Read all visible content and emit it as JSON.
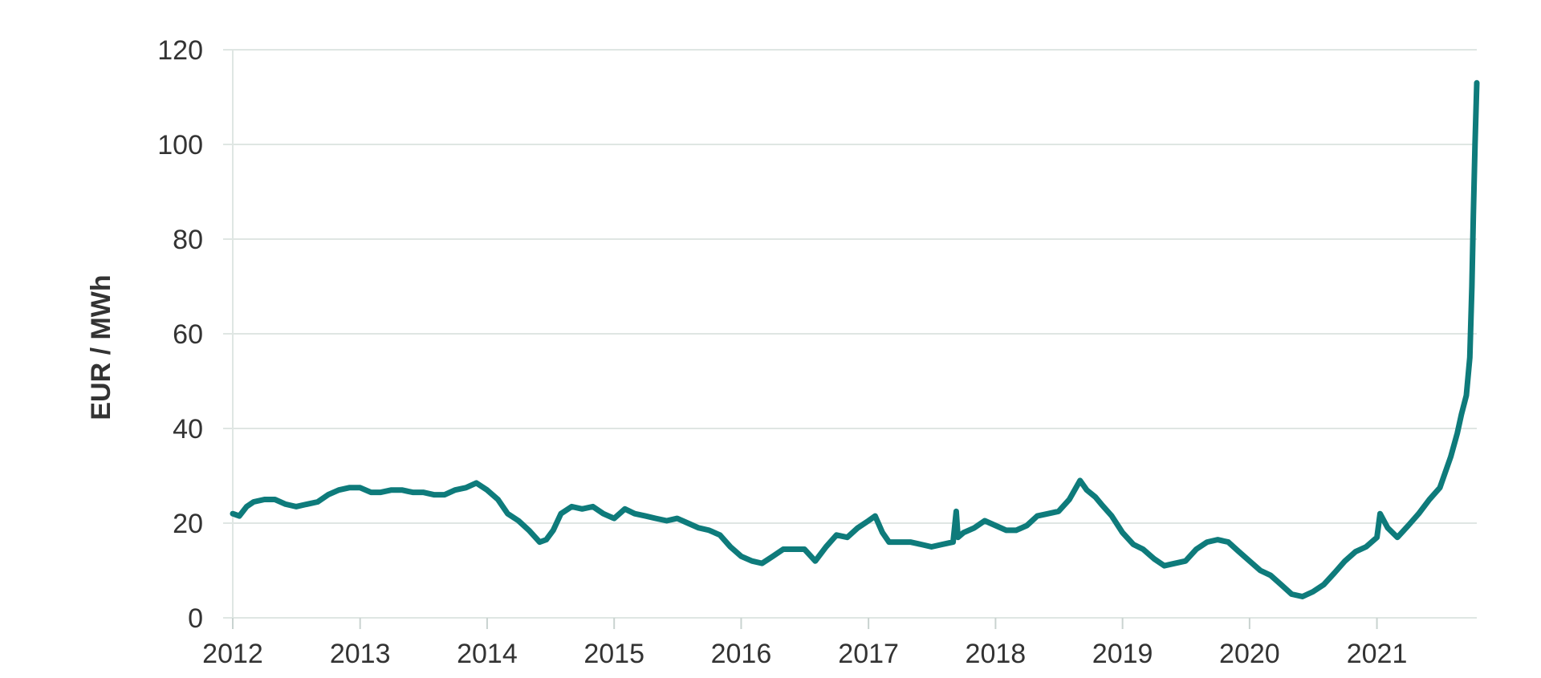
{
  "chart_data": {
    "type": "line",
    "title": "",
    "xlabel": "",
    "ylabel": "EUR / MWh",
    "ylim": [
      0,
      120
    ],
    "xlim": [
      "2012-01-01",
      "2021-10-15"
    ],
    "y_ticks": [
      "0",
      "20",
      "40",
      "60",
      "80",
      "100",
      "120"
    ],
    "x_ticks": [
      "2012",
      "2013",
      "2014",
      "2015",
      "2016",
      "2017",
      "2018",
      "2019",
      "2020",
      "2021"
    ],
    "grid": "horizontal",
    "legend": "none",
    "colors": {
      "line": "#0e7b7b",
      "grid": "#dfe6e3",
      "text": "#333333"
    },
    "series": [
      {
        "x": [
          "2012-01-01",
          "2012-01-20",
          "2012-02-10",
          "2012-03-01",
          "2012-04-01",
          "2012-05-01",
          "2012-06-01",
          "2012-07-01",
          "2012-08-01",
          "2012-09-01",
          "2012-10-01",
          "2012-11-01",
          "2012-12-01",
          "2013-01-01",
          "2013-02-01",
          "2013-03-01",
          "2013-04-01",
          "2013-05-01",
          "2013-06-01",
          "2013-07-01",
          "2013-08-01",
          "2013-09-01",
          "2013-10-01",
          "2013-11-01",
          "2013-12-01",
          "2014-01-01",
          "2014-02-01",
          "2014-03-01",
          "2014-04-01",
          "2014-05-01",
          "2014-06-01",
          "2014-06-20",
          "2014-07-10",
          "2014-08-01",
          "2014-09-01",
          "2014-10-01",
          "2014-11-01",
          "2014-12-01",
          "2015-01-01",
          "2015-02-01",
          "2015-03-01",
          "2015-04-01",
          "2015-05-01",
          "2015-06-01",
          "2015-07-01",
          "2015-08-01",
          "2015-09-01",
          "2015-10-01",
          "2015-11-01",
          "2015-12-01",
          "2016-01-01",
          "2016-02-01",
          "2016-03-01",
          "2016-04-01",
          "2016-05-01",
          "2016-06-01",
          "2016-07-01",
          "2016-08-01",
          "2016-09-01",
          "2016-10-01",
          "2016-11-01",
          "2016-12-01",
          "2017-01-01",
          "2017-01-20",
          "2017-02-10",
          "2017-03-01",
          "2017-04-01",
          "2017-05-01",
          "2017-06-01",
          "2017-07-01",
          "2017-08-01",
          "2017-09-01",
          "2017-09-10",
          "2017-09-15",
          "2017-10-01",
          "2017-11-01",
          "2017-12-01",
          "2018-01-01",
          "2018-02-01",
          "2018-03-01",
          "2018-04-01",
          "2018-05-01",
          "2018-06-01",
          "2018-07-01",
          "2018-08-01",
          "2018-09-01",
          "2018-09-20",
          "2018-10-15",
          "2018-11-01",
          "2018-12-01",
          "2019-01-01",
          "2019-02-01",
          "2019-03-01",
          "2019-04-01",
          "2019-05-01",
          "2019-06-01",
          "2019-07-01",
          "2019-08-01",
          "2019-09-01",
          "2019-10-01",
          "2019-11-01",
          "2019-12-01",
          "2020-01-01",
          "2020-02-01",
          "2020-03-01",
          "2020-04-01",
          "2020-05-01",
          "2020-06-01",
          "2020-07-01",
          "2020-08-01",
          "2020-09-01",
          "2020-10-01",
          "2020-11-01",
          "2020-12-01",
          "2021-01-01",
          "2021-01-10",
          "2021-02-01",
          "2021-03-01",
          "2021-04-01",
          "2021-05-01",
          "2021-06-01",
          "2021-07-01",
          "2021-08-01",
          "2021-08-20",
          "2021-09-01",
          "2021-09-15",
          "2021-09-25",
          "2021-10-01",
          "2021-10-05",
          "2021-10-10",
          "2021-10-15"
        ],
        "y": [
          22,
          21.5,
          23.5,
          24.5,
          25,
          25,
          24,
          23.5,
          24,
          24.5,
          26,
          27,
          27.5,
          27.5,
          26.5,
          26.5,
          27,
          27,
          26.5,
          26.5,
          26,
          26,
          27,
          27.5,
          28.5,
          27,
          25,
          22,
          20.5,
          18.5,
          16,
          16.5,
          18.5,
          22,
          23.5,
          23,
          23.5,
          22,
          21,
          23,
          22,
          21.5,
          21,
          20.5,
          21,
          20,
          19,
          18.5,
          17.5,
          15,
          13,
          12,
          11.5,
          13,
          14.5,
          14.5,
          14.5,
          12,
          15,
          17.5,
          17,
          19,
          20.5,
          21.5,
          18,
          16,
          16,
          16,
          15.5,
          15,
          15.5,
          16,
          22.5,
          17,
          18,
          19,
          20.5,
          19.5,
          18.5,
          18.5,
          19.5,
          21.5,
          22,
          22.5,
          25,
          29,
          27,
          25.5,
          24,
          21.5,
          18,
          15.5,
          14.5,
          12.5,
          11,
          11.5,
          12,
          14.5,
          16,
          16.5,
          16,
          14,
          12,
          10,
          9,
          7,
          5,
          4.5,
          5.5,
          7,
          9.5,
          12,
          14,
          15,
          17,
          22,
          19,
          17,
          19.5,
          22,
          25,
          27.5,
          34,
          39,
          43,
          47,
          55,
          70,
          85,
          100,
          113
        ]
      }
    ]
  }
}
